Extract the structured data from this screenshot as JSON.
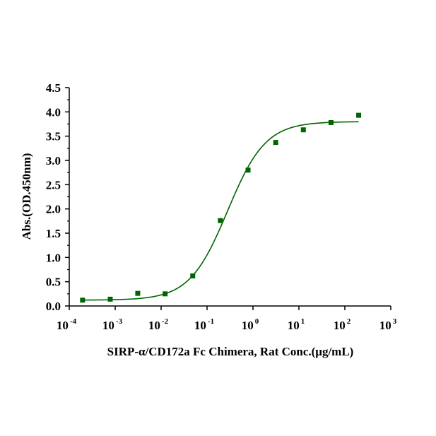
{
  "chart_data": {
    "type": "scatter",
    "title": "",
    "xlabel": "SIRP-α/CD172a Fc Chimera, Rat  Conc.(μg/mL)",
    "ylabel": "Abs.(OD.450nm)",
    "xscale": "log10",
    "xlim": [
      0.0001,
      1000
    ],
    "ylim": [
      0,
      4.5
    ],
    "x_ticks": [
      {
        "base": "10",
        "exp": "-4"
      },
      {
        "base": "10",
        "exp": "-3"
      },
      {
        "base": "10",
        "exp": "-2"
      },
      {
        "base": "10",
        "exp": "-1"
      },
      {
        "base": "10",
        "exp": "0"
      },
      {
        "base": "10",
        "exp": "1"
      },
      {
        "base": "10",
        "exp": "2"
      },
      {
        "base": "10",
        "exp": "3"
      }
    ],
    "y_ticks": [
      "0.0",
      "0.5",
      "1.0",
      "1.5",
      "2.0",
      "2.5",
      "3.0",
      "3.5",
      "4.0",
      "4.5"
    ],
    "series": [
      {
        "marker": "square",
        "color": "#006400",
        "points": [
          {
            "x": 0.000195,
            "y": 0.12
          },
          {
            "x": 0.00078,
            "y": 0.14
          },
          {
            "x": 0.0031,
            "y": 0.26
          },
          {
            "x": 0.0122,
            "y": 0.25
          },
          {
            "x": 0.0488,
            "y": 0.62
          },
          {
            "x": 0.195,
            "y": 1.76
          },
          {
            "x": 0.781,
            "y": 2.8
          },
          {
            "x": 3.125,
            "y": 3.37
          },
          {
            "x": 12.5,
            "y": 3.63
          },
          {
            "x": 50,
            "y": 3.78
          },
          {
            "x": 200,
            "y": 3.93
          }
        ]
      }
    ],
    "fit_curve": {
      "type": "4PL",
      "color": "#006400",
      "bottom": 0.12,
      "top": 3.8,
      "ec50": 0.28,
      "hill": 1.05,
      "x_range": [
        0.0002,
        200
      ]
    },
    "grid": false,
    "legend": "none"
  }
}
